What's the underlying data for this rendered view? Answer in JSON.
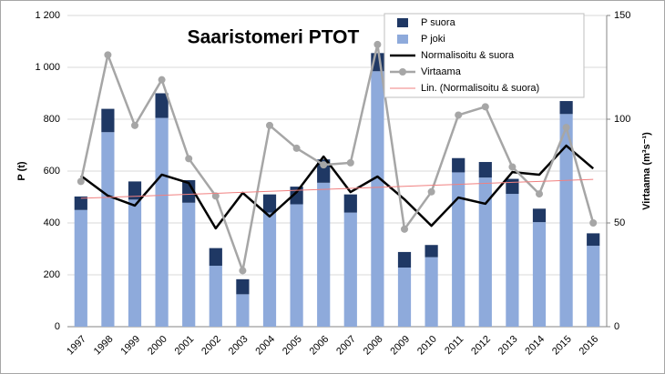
{
  "chart_data": {
    "type": "bar",
    "title": "Saaristomeri PTOT",
    "ylabel": "P (t)",
    "y2label": "Virtaama (m³s⁻¹)",
    "categories": [
      "1997",
      "1998",
      "1999",
      "2000",
      "2001",
      "2002",
      "2003",
      "2004",
      "2005",
      "2006",
      "2007",
      "2008",
      "2009",
      "2010",
      "2011",
      "2012",
      "2013",
      "2014",
      "2015",
      "2016"
    ],
    "ylim": [
      0,
      1200
    ],
    "yticks": [
      0,
      200,
      400,
      600,
      800,
      {
        "value": 1000,
        "label": "1 000"
      },
      {
        "value": 1200,
        "label": "1 200"
      }
    ],
    "y2lim": [
      0,
      150
    ],
    "y2ticks": [
      0,
      50,
      100,
      150
    ],
    "grid": true,
    "legend": "top-right",
    "series": [
      {
        "name": "P suora",
        "type": "bar",
        "color": "#1f3864",
        "values": [
          52,
          90,
          70,
          95,
          87,
          68,
          58,
          70,
          68,
          90,
          70,
          70,
          60,
          47,
          55,
          60,
          58,
          52,
          50,
          48
        ]
      },
      {
        "name": "P joki",
        "type": "bar",
        "color": "#8eaadb",
        "values": [
          450,
          750,
          490,
          805,
          478,
          235,
          125,
          440,
          472,
          555,
          440,
          985,
          228,
          268,
          595,
          575,
          512,
          403,
          820,
          312
        ]
      },
      {
        "name": "Normalisoitu & suora",
        "type": "line",
        "color": "#000000",
        "values": [
          582,
          505,
          467,
          586,
          554,
          379,
          516,
          425,
          519,
          656,
          519,
          579,
          491,
          389,
          498,
          474,
          596,
          586,
          698,
          610
        ]
      },
      {
        "name": "Virtaama",
        "type": "line-marker",
        "axis": "y2",
        "color": "#a6a6a6",
        "values": [
          70,
          131,
          97,
          119,
          81,
          63,
          27,
          97,
          86,
          78,
          79,
          136,
          47,
          65,
          102,
          106,
          77,
          64,
          96,
          50
        ]
      },
      {
        "name": "Lin. (Normalisoitu & suora)",
        "type": "line-thin",
        "color": "#f08080",
        "values": [
          495,
          498.8,
          502.7,
          506.5,
          510.4,
          514.2,
          518.1,
          521.9,
          525.7,
          529.6,
          533.4,
          537.3,
          541.1,
          545,
          548.8,
          552.6,
          556.5,
          560.3,
          564.2,
          568
        ]
      }
    ]
  }
}
